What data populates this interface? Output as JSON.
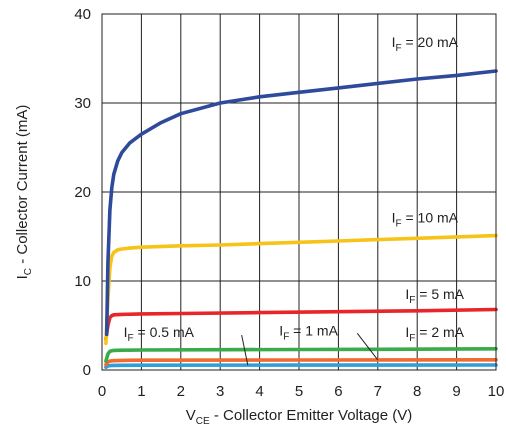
{
  "chart_data": {
    "type": "line",
    "xlabel": {
      "prefix": "V",
      "sub": "CE",
      "rest": " - Collector Emitter Voltage (V)"
    },
    "ylabel": {
      "prefix": "I",
      "sub": "C",
      "rest": " - Collector Current (mA)"
    },
    "xlim": [
      0,
      10
    ],
    "ylim": [
      0,
      40
    ],
    "xticks": [
      0,
      1,
      2,
      3,
      4,
      5,
      6,
      7,
      8,
      9,
      10
    ],
    "yticks": [
      0,
      10,
      20,
      30,
      40
    ],
    "grid": true,
    "series": [
      {
        "name": "I<sub>F</sub> = 20 mA",
        "prefix": "I",
        "sub": "F",
        "rest": " = 20 mA",
        "color": "#2e4a9b",
        "x": [
          0.12,
          0.15,
          0.2,
          0.25,
          0.3,
          0.4,
          0.5,
          0.7,
          1.0,
          1.5,
          2.0,
          3.0,
          4.0,
          5.0,
          6.0,
          7.0,
          8.0,
          9.0,
          10.0
        ],
        "y": [
          4.0,
          12.0,
          18.0,
          20.5,
          22.0,
          23.5,
          24.4,
          25.5,
          26.5,
          27.8,
          28.8,
          30.0,
          30.7,
          31.2,
          31.7,
          32.2,
          32.7,
          33.1,
          33.6
        ]
      },
      {
        "name": "I<sub>F</sub> = 10 mA",
        "prefix": "I",
        "sub": "F",
        "rest": " = 10 mA",
        "color": "#f7c318",
        "x": [
          0.1,
          0.15,
          0.2,
          0.25,
          0.3,
          0.4,
          0.5,
          0.7,
          1.0,
          2.0,
          3.0,
          4.0,
          5.0,
          6.0,
          7.0,
          8.0,
          9.0,
          10.0
        ],
        "y": [
          3.0,
          8.0,
          11.5,
          12.8,
          13.2,
          13.5,
          13.6,
          13.7,
          13.8,
          13.95,
          14.05,
          14.2,
          14.35,
          14.5,
          14.65,
          14.8,
          14.95,
          15.1
        ]
      },
      {
        "name": "I<sub>F</sub> = 5 mA",
        "prefix": "I",
        "sub": "F",
        "rest": " = 5 mA",
        "color": "#e8262a",
        "x": [
          0.1,
          0.15,
          0.2,
          0.25,
          0.3,
          0.5,
          1.0,
          2.0,
          4.0,
          6.0,
          8.0,
          10.0
        ],
        "y": [
          3.5,
          5.0,
          5.9,
          6.1,
          6.2,
          6.25,
          6.3,
          6.35,
          6.45,
          6.55,
          6.65,
          6.8
        ]
      },
      {
        "name": "I<sub>F</sub> = 2 mA",
        "prefix": "I",
        "sub": "F",
        "rest": " = 2 mA",
        "color": "#3aaa4a",
        "x": [
          0.1,
          0.15,
          0.2,
          0.3,
          0.5,
          1.0,
          3.0,
          5.0,
          7.0,
          10.0
        ],
        "y": [
          1.0,
          1.8,
          2.1,
          2.2,
          2.22,
          2.25,
          2.28,
          2.3,
          2.33,
          2.38
        ]
      },
      {
        "name": "I<sub>F</sub> = 1 mA",
        "prefix": "I",
        "sub": "F",
        "rest": " = 1 mA",
        "color": "#f26a2e",
        "x": [
          0.1,
          0.15,
          0.2,
          0.3,
          0.5,
          1.0,
          5.0,
          10.0
        ],
        "y": [
          0.6,
          0.9,
          1.0,
          1.05,
          1.08,
          1.1,
          1.12,
          1.15
        ]
      },
      {
        "name": "I<sub>F</sub> = 0.5 mA",
        "prefix": "I",
        "sub": "F",
        "rest": " = 0.5 mA",
        "color": "#2e9fd8",
        "x": [
          0.1,
          0.15,
          0.2,
          0.3,
          0.5,
          1.0,
          5.0,
          10.0
        ],
        "y": [
          0.3,
          0.45,
          0.5,
          0.52,
          0.53,
          0.54,
          0.55,
          0.56
        ]
      }
    ],
    "annotations": [
      {
        "series": "I<sub>F</sub> = 20 mA",
        "label_at": [
          7.35,
          36.3
        ]
      },
      {
        "series": "I<sub>F</sub> = 10 mA",
        "label_at": [
          7.35,
          16.6
        ]
      },
      {
        "series": "I<sub>F</sub> = 5 mA",
        "label_at": [
          7.7,
          8.0
        ]
      },
      {
        "series": "I<sub>F</sub> = 2 mA",
        "label_at": [
          7.7,
          3.7
        ]
      },
      {
        "series": "I<sub>F</sub> = 1 mA",
        "label_at": [
          4.5,
          3.9
        ],
        "arrow_to": [
          7.0,
          1.13
        ]
      },
      {
        "series": "I<sub>F</sub> = 0.5 mA",
        "label_at": [
          0.55,
          3.7
        ],
        "arrow_to": [
          3.7,
          0.55
        ]
      }
    ]
  }
}
